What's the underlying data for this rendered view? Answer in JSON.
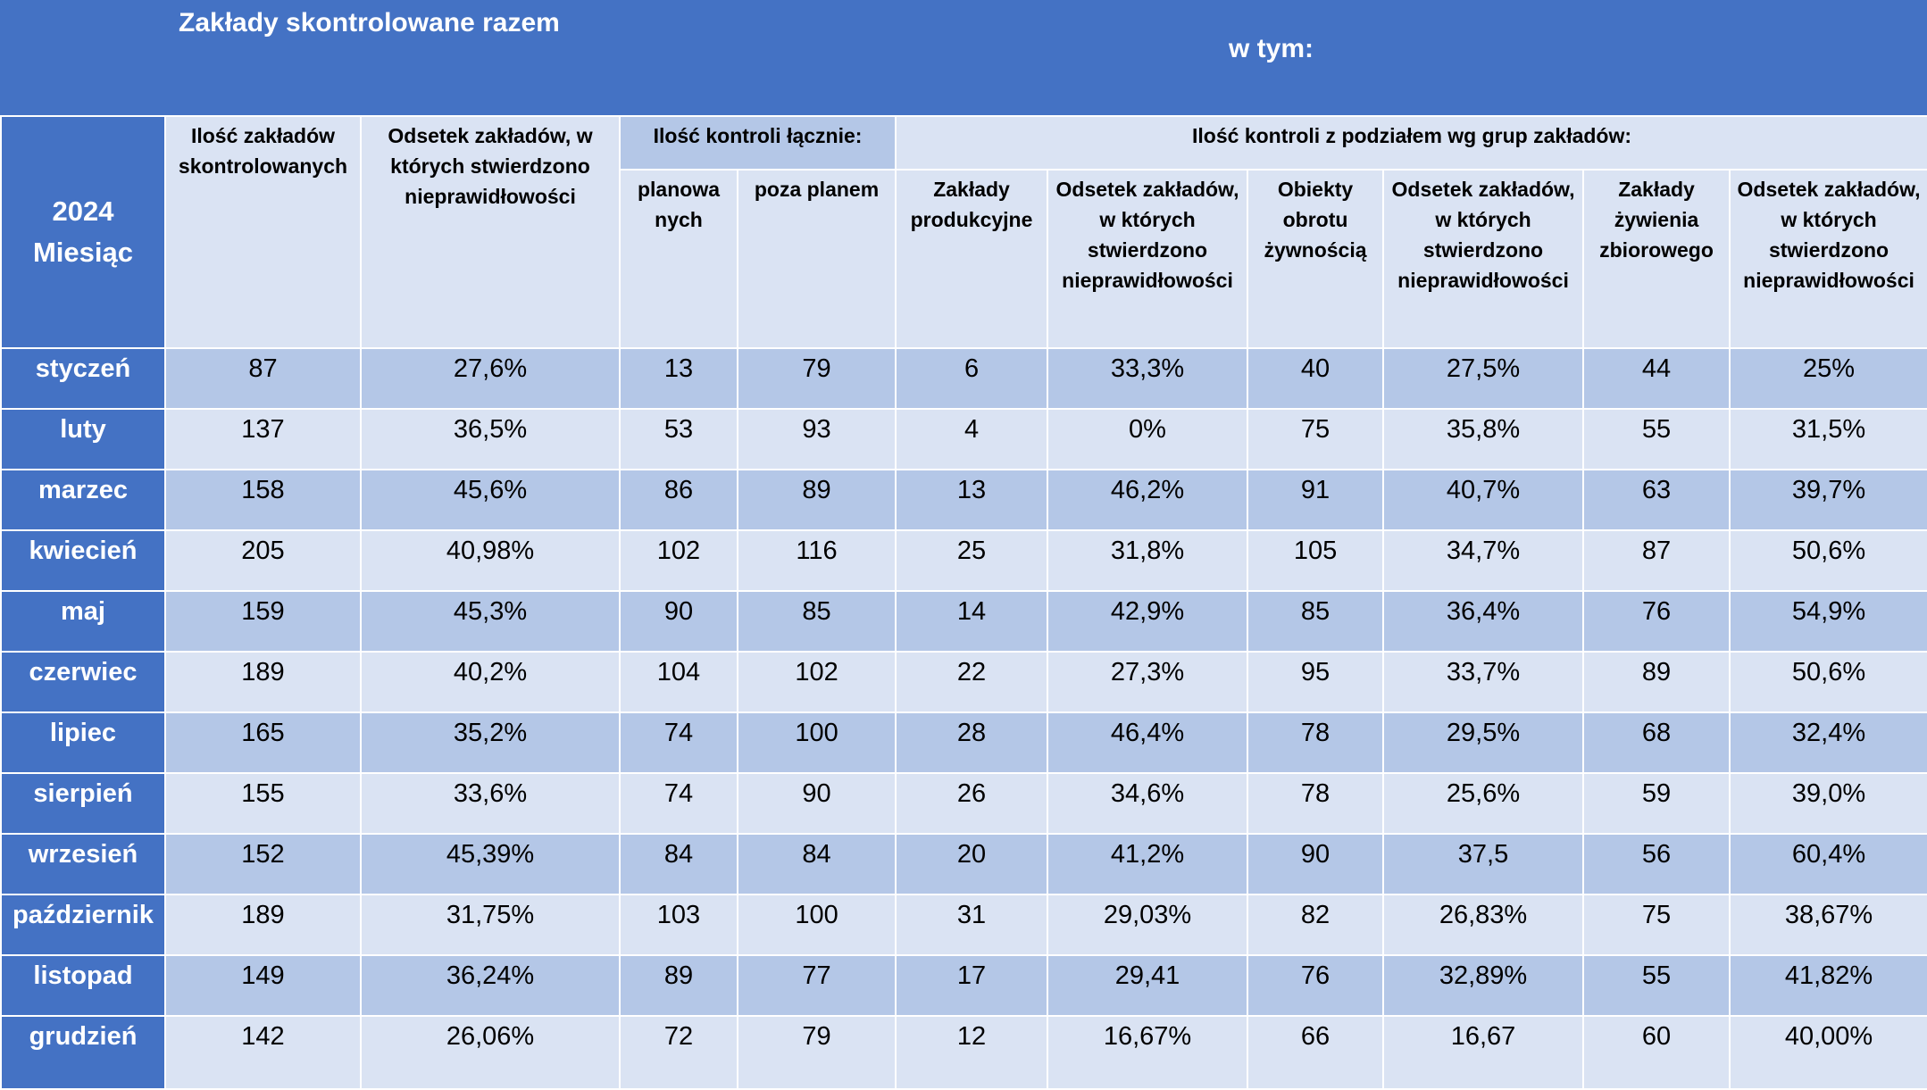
{
  "header": {
    "main_title": "Zakłady skontrolowane razem",
    "sub_title": "w tym:",
    "year": "2024",
    "month_label": "Miesiąc"
  },
  "columns": {
    "count_inspected": "Ilość zakładów skontrolowanych",
    "pct_irregular": "Odsetek zakładów, w których stwierdzono nieprawidłowości",
    "group_total_controls": "Ilość kontroli łącznie:",
    "group_by_type": "Ilość kontroli z podziałem wg grup zakładów:",
    "planned": "planowa nych",
    "unplanned": "poza planem",
    "production": "Zakłady produkcyjne",
    "production_pct": "Odsetek zakładów, w których stwierdzono nieprawidłowości",
    "trade": "Obiekty obrotu żywnością",
    "trade_pct": "Odsetek zakładów, w których stwierdzono nieprawidłowości",
    "catering": "Zakłady żywienia zbiorowego",
    "catering_pct": "Odsetek zakładów, w których stwierdzono nieprawidłowości"
  },
  "rows": [
    {
      "month": "styczeń",
      "values": [
        "87",
        "27,6%",
        "13",
        "79",
        "6",
        "33,3%",
        "40",
        "27,5%",
        "44",
        "25%"
      ]
    },
    {
      "month": "luty",
      "values": [
        "137",
        "36,5%",
        "53",
        "93",
        "4",
        "0%",
        "75",
        "35,8%",
        "55",
        "31,5%"
      ]
    },
    {
      "month": "marzec",
      "values": [
        "158",
        "45,6%",
        "86",
        "89",
        "13",
        "46,2%",
        "91",
        "40,7%",
        "63",
        "39,7%"
      ]
    },
    {
      "month": "kwiecień",
      "values": [
        "205",
        "40,98%",
        "102",
        "116",
        "25",
        "31,8%",
        "105",
        "34,7%",
        "87",
        "50,6%"
      ]
    },
    {
      "month": "maj",
      "values": [
        "159",
        "45,3%",
        "90",
        "85",
        "14",
        "42,9%",
        "85",
        "36,4%",
        "76",
        "54,9%"
      ]
    },
    {
      "month": "czerwiec",
      "values": [
        "189",
        "40,2%",
        "104",
        "102",
        "22",
        "27,3%",
        "95",
        "33,7%",
        "89",
        "50,6%"
      ]
    },
    {
      "month": "lipiec",
      "values": [
        "165",
        "35,2%",
        "74",
        "100",
        "28",
        "46,4%",
        "78",
        "29,5%",
        "68",
        "32,4%"
      ]
    },
    {
      "month": "sierpień",
      "values": [
        "155",
        "33,6%",
        "74",
        "90",
        "26",
        "34,6%",
        "78",
        "25,6%",
        "59",
        "39,0%"
      ]
    },
    {
      "month": "wrzesień",
      "values": [
        "152",
        "45,39%",
        "84",
        "84",
        "20",
        "41,2%",
        "90",
        "37,5",
        "56",
        "60,4%"
      ]
    },
    {
      "month": "październik",
      "values": [
        "189",
        "31,75%",
        "103",
        "100",
        "31",
        "29,03%",
        "82",
        "26,83%",
        "75",
        "38,67%"
      ]
    },
    {
      "month": "listopad",
      "values": [
        "149",
        "36,24%",
        "89",
        "77",
        "17",
        "29,41",
        "76",
        "32,89%",
        "55",
        "41,82%"
      ]
    },
    {
      "month": "grudzień",
      "values": [
        "142",
        "26,06%",
        "72",
        "79",
        "12",
        "16,67%",
        "66",
        "16,67",
        "60",
        "40,00%"
      ]
    }
  ],
  "colors": {
    "header_blue": "#4472c4",
    "row_dark": "#b4c7e7",
    "row_light": "#dae3f3"
  }
}
